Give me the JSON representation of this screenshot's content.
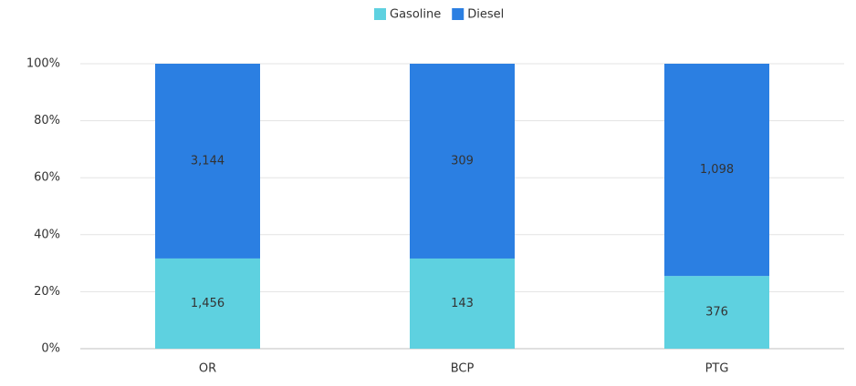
{
  "chart_data": {
    "type": "bar",
    "stacking": "percent",
    "categories": [
      "OR",
      "BCP",
      "PTG"
    ],
    "series": [
      {
        "name": "Gasoline",
        "color": "#5ed1e0",
        "values": [
          1456,
          143,
          376
        ],
        "value_labels": [
          "1,456",
          "143",
          "376"
        ]
      },
      {
        "name": "Diesel",
        "color": "#2b7fe2",
        "values": [
          3144,
          309,
          1098
        ],
        "value_labels": [
          "3,144",
          "309",
          "1,098"
        ]
      }
    ],
    "ylim": [
      0,
      100
    ],
    "yticks": [
      {
        "value": 0,
        "label": "0%"
      },
      {
        "value": 20,
        "label": "20%"
      },
      {
        "value": 40,
        "label": "40%"
      },
      {
        "value": 60,
        "label": "60%"
      },
      {
        "value": 80,
        "label": "80%"
      },
      {
        "value": 100,
        "label": "100%"
      }
    ],
    "grid": true,
    "legend": "top"
  }
}
